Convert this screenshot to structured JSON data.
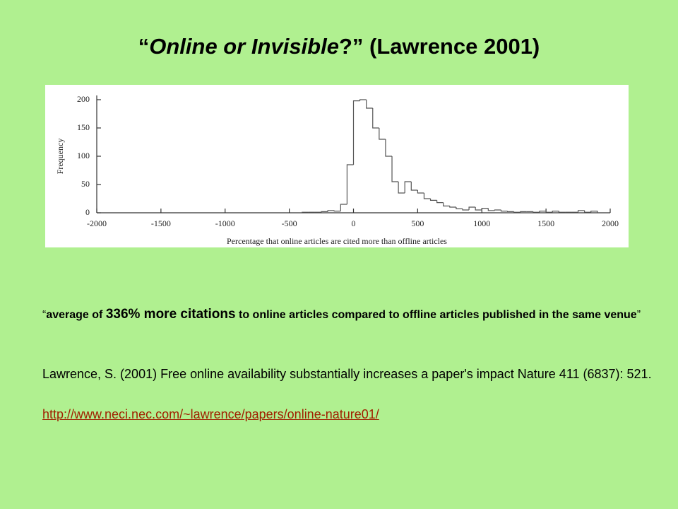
{
  "slide": {
    "title": {
      "open": "“",
      "italic": "Online or Invisible",
      "rest": "?” (Lawrence 2001)"
    },
    "quote": {
      "open": "“",
      "lead": "average of ",
      "emphasis": "336% more citations",
      "tail": " to online articles compared to offline articles published in the same venue",
      "close": "”"
    },
    "reference": "Lawrence, S. (2001) Free online availability substantially increases a paper's impact Nature 411 (6837): 521.",
    "url": "http://www.neci.nec.com/~lawrence/papers/online-nature01/"
  },
  "chart_data": {
    "type": "histogram",
    "xlabel": "Percentage that online articles are cited more than offline articles",
    "ylabel": "Frequency",
    "bins": [
      -400,
      -350,
      -300,
      -250,
      -200,
      -150,
      -100,
      -50,
      0,
      50,
      100,
      150,
      200,
      250,
      300,
      350,
      400,
      450,
      500,
      550,
      600,
      650,
      700,
      750,
      800,
      850,
      900,
      950,
      1000,
      1050,
      1100,
      1150,
      1200,
      1250,
      1300,
      1350,
      1400,
      1450,
      1500,
      1550,
      1600,
      1650,
      1700,
      1750,
      1800,
      1850,
      1900
    ],
    "values": [
      1,
      1,
      1,
      2,
      4,
      3,
      15,
      85,
      198,
      200,
      185,
      150,
      130,
      100,
      55,
      35,
      55,
      40,
      35,
      25,
      22,
      18,
      12,
      10,
      7,
      5,
      10,
      5,
      8,
      4,
      5,
      3,
      2,
      1,
      2,
      2,
      1,
      3,
      1,
      3,
      1,
      1,
      1,
      4,
      1,
      3
    ],
    "color": "#555555",
    "xlim": [
      -2000,
      2000
    ],
    "xticks": [
      -2000,
      -1500,
      -1000,
      -500,
      0,
      500,
      1000,
      1500,
      2000
    ],
    "ylim": [
      0,
      200
    ],
    "yticks": [
      0,
      50,
      100,
      150,
      200
    ]
  }
}
